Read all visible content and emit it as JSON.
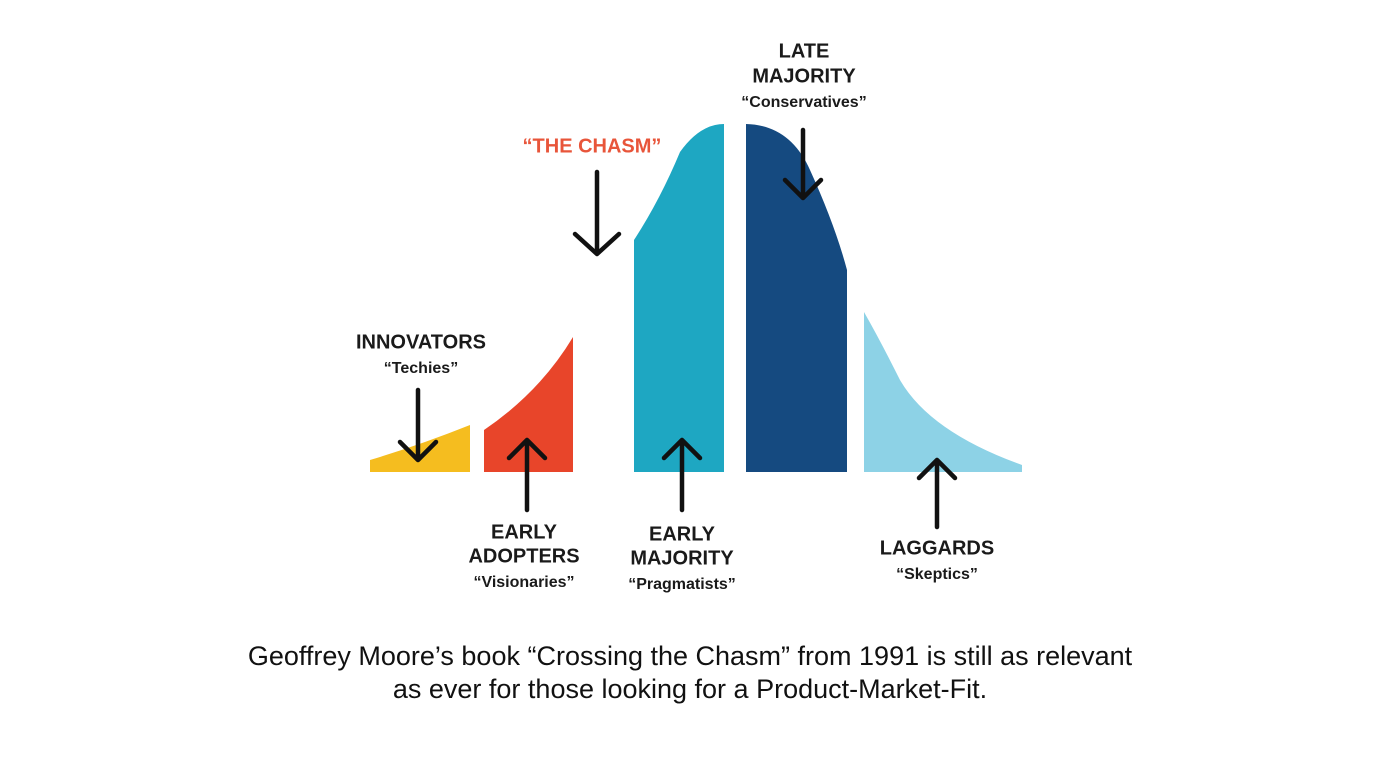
{
  "segments": [
    {
      "title": [
        "INNOVATORS"
      ],
      "subtitle": "“Techies”"
    },
    {
      "title": [
        "EARLY",
        "ADOPTERS"
      ],
      "subtitle": "“Visionaries”"
    },
    {
      "title": [
        "EARLY",
        "MAJORITY"
      ],
      "subtitle": "“Pragmatists”"
    },
    {
      "title": [
        "LATE",
        "MAJORITY"
      ],
      "subtitle": "“Conservatives”"
    },
    {
      "title": [
        "LAGGARDS"
      ],
      "subtitle": "“Skeptics”"
    }
  ],
  "chasm": "“THE CHASM”",
  "caption": [
    "Geoffrey Moore’s book “Crossing the Chasm” from 1991 is still as relevant",
    "as ever for those looking for a Product-Market-Fit."
  ]
}
